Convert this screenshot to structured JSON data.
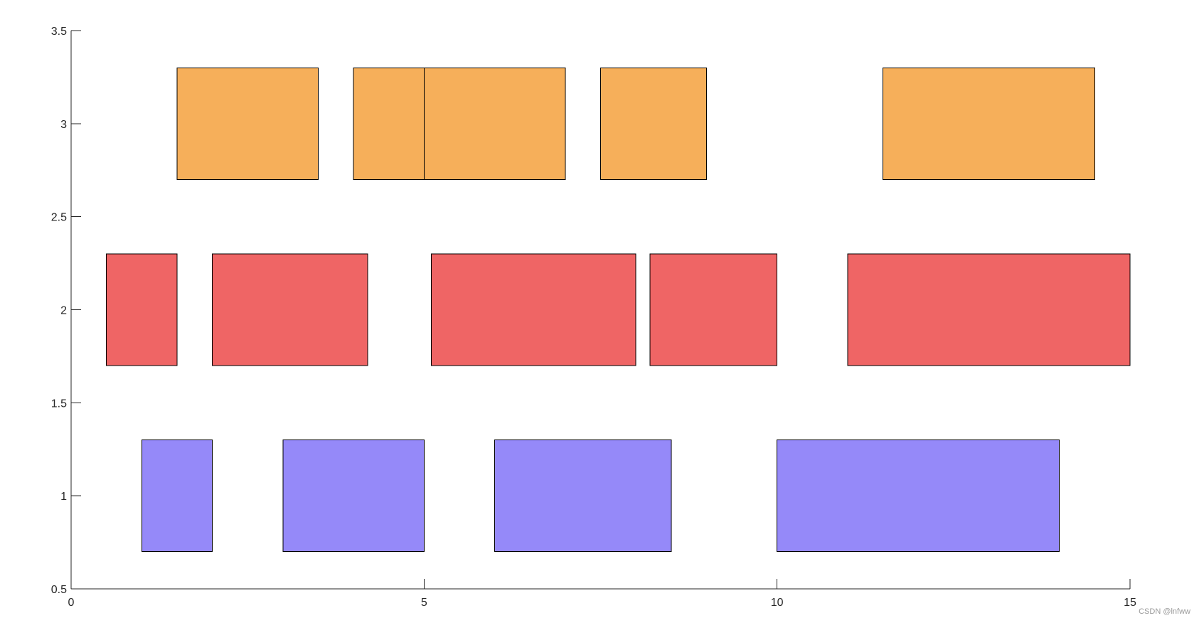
{
  "chart_data": {
    "type": "bar",
    "subtype": "horizontal-interval (gantt)",
    "title": "",
    "xlabel": "",
    "ylabel": "",
    "xlim": [
      0,
      15
    ],
    "ylim": [
      0.5,
      3.5
    ],
    "xticks": [
      "0",
      "5",
      "10",
      "15"
    ],
    "yticks": [
      "0.5",
      "1",
      "1.5",
      "2",
      "2.5",
      "3",
      "3.5"
    ],
    "grid": false,
    "legend": "none",
    "bar_half_height": 0.3,
    "series": [
      {
        "row": 1,
        "color": "#9589f9",
        "intervals": [
          [
            1,
            2
          ],
          [
            3,
            5
          ],
          [
            6,
            8.5
          ],
          [
            10,
            14
          ]
        ]
      },
      {
        "row": 2,
        "color": "#ef6565",
        "intervals": [
          [
            0.5,
            1.5
          ],
          [
            2,
            4.2
          ],
          [
            5.1,
            8
          ],
          [
            8.2,
            10
          ],
          [
            11,
            15
          ]
        ]
      },
      {
        "row": 3,
        "color": "#f6af5a",
        "intervals": [
          [
            1.5,
            3.5
          ],
          [
            4,
            5
          ],
          [
            5,
            7
          ],
          [
            7.5,
            9
          ],
          [
            11.5,
            14.5
          ]
        ]
      }
    ]
  },
  "watermark": "CSDN @lnfww"
}
